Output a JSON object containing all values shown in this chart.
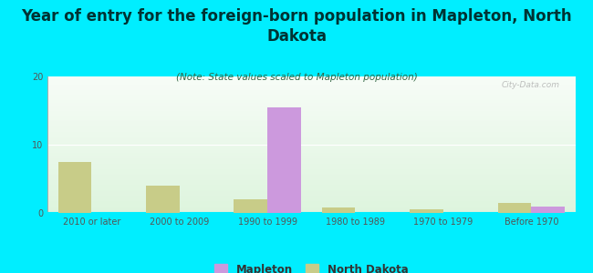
{
  "title": "Year of entry for the foreign-born population in Mapleton, North\nDakota",
  "subtitle": "(Note: State values scaled to Mapleton population)",
  "categories": [
    "2010 or later",
    "2000 to 2009",
    "1990 to 1999",
    "1980 to 1989",
    "1970 to 1979",
    "Before 1970"
  ],
  "mapleton_values": [
    0,
    0,
    15.5,
    0,
    0,
    1.0
  ],
  "nd_values": [
    7.5,
    4.0,
    2.0,
    0.8,
    0.6,
    1.5
  ],
  "mapleton_color": "#cc99dd",
  "nd_color": "#c8cc88",
  "background_color": "#00eeff",
  "ylim": [
    0,
    20
  ],
  "yticks": [
    0,
    10,
    20
  ],
  "bar_width": 0.38,
  "watermark": "City-Data.com",
  "title_fontsize": 12,
  "subtitle_fontsize": 7.5,
  "tick_fontsize": 7,
  "legend_fontsize": 8.5
}
